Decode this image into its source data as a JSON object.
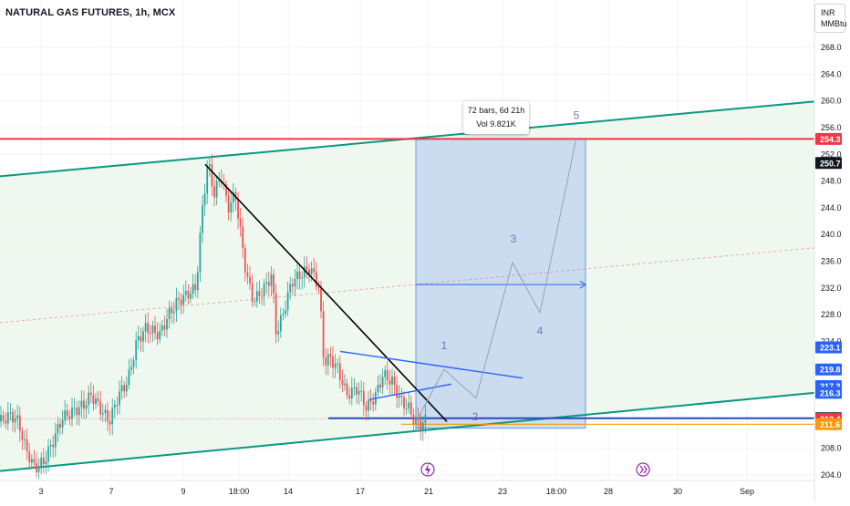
{
  "header": {
    "symbol_title": "NATURAL GAS FUTURES, 1h, MCX",
    "currency": "INR",
    "unit": "MMBtu"
  },
  "measure_tooltip": {
    "line1": "72 bars, 6d 21h",
    "line2": "Vol 9.821K"
  },
  "colors": {
    "background": "#ffffff",
    "up_candle": "#26a69a",
    "down_candle": "#ef5350",
    "channel_line": "#089981",
    "channel_fill": "#e8f5e9",
    "resistance": "#f23645",
    "support": "#1848cc",
    "orange_level": "#ff9800",
    "projection_box": "#bbd0ee",
    "projection_border": "#4a86e8",
    "wave_path": "#9aa0b4",
    "wave_label": "#7e6fbe",
    "trend_line": "#000000"
  },
  "chart_data": {
    "type": "candlestick",
    "symbol": "NATURAL GAS FUTURES",
    "interval": "1h",
    "exchange": "MCX",
    "ylim": [
      203.5,
      271.0
    ],
    "y_ticks": [
      204.0,
      208.0,
      212.0,
      216.0,
      220.0,
      224.0,
      228.0,
      232.0,
      236.0,
      240.0,
      244.0,
      248.0,
      252.0,
      256.0,
      260.0,
      264.0,
      268.0
    ],
    "x_ticks": [
      "3",
      "7",
      "9",
      "18:00",
      "14",
      "17",
      "21",
      "23",
      "18:00",
      "28",
      "30",
      "Sep"
    ],
    "price_labels": [
      {
        "text": "254.3",
        "value": 254.3,
        "color": "#f23645"
      },
      {
        "text": "250.7",
        "value": 250.7,
        "color": "#131722"
      },
      {
        "text": "223.1",
        "value": 223.1,
        "color": "#2962ff"
      },
      {
        "text": "219.8",
        "value": 219.8,
        "color": "#2962ff"
      },
      {
        "text": "217.3",
        "value": 217.3,
        "color": "#2962ff"
      },
      {
        "text": "216.3",
        "value": 216.3,
        "color": "#2962ff"
      },
      {
        "text": "212.5",
        "value": 212.5,
        "color": "#131722"
      },
      {
        "text": "212.4",
        "value": 212.4,
        "color": "#f23645"
      },
      {
        "text": "211.6",
        "value": 211.6,
        "color": "#ff9800"
      }
    ],
    "candle_path": [
      [
        0,
        212.0
      ],
      [
        12,
        213.0
      ],
      [
        20,
        212.0
      ],
      [
        28,
        208.0
      ],
      [
        38,
        205.0
      ],
      [
        48,
        206.0
      ],
      [
        58,
        209.0
      ],
      [
        68,
        212.5
      ],
      [
        80,
        213.5
      ],
      [
        92,
        214.5
      ],
      [
        100,
        216.0
      ],
      [
        112,
        213.5
      ],
      [
        120,
        212.0
      ],
      [
        130,
        216.0
      ],
      [
        140,
        218.0
      ],
      [
        150,
        224.0
      ],
      [
        160,
        226.0
      ],
      [
        175,
        225.0
      ],
      [
        185,
        228.0
      ],
      [
        195,
        230.0
      ],
      [
        205,
        231.0
      ],
      [
        215,
        232.0
      ],
      [
        222,
        244.0
      ],
      [
        228,
        251.0
      ],
      [
        235,
        246.0
      ],
      [
        242,
        249.0
      ],
      [
        250,
        244.0
      ],
      [
        258,
        246.0
      ],
      [
        265,
        239.0
      ],
      [
        270,
        234.0
      ],
      [
        278,
        230.0
      ],
      [
        290,
        232.0
      ],
      [
        298,
        234.0
      ],
      [
        303,
        225.0
      ],
      [
        310,
        228.0
      ],
      [
        320,
        233.0
      ],
      [
        330,
        234.0
      ],
      [
        340,
        235.0
      ],
      [
        350,
        232.0
      ],
      [
        355,
        221.0
      ],
      [
        362,
        221.5
      ],
      [
        370,
        220.0
      ],
      [
        380,
        216.0
      ],
      [
        392,
        217.0
      ],
      [
        402,
        214.0
      ],
      [
        412,
        216.0
      ],
      [
        420,
        219.0
      ],
      [
        430,
        218.0
      ],
      [
        440,
        215.0
      ],
      [
        448,
        214.0
      ],
      [
        455,
        212.0
      ],
      [
        462,
        211.5
      ],
      [
        468,
        212.4
      ]
    ],
    "channel": {
      "upper": [
        [
          0,
          248.7
        ],
        [
          893,
          259.9
        ]
      ],
      "lower": [
        [
          0,
          204.6
        ],
        [
          893,
          216.3
        ]
      ],
      "mid_dashed": [
        [
          0,
          226.8
        ],
        [
          893,
          238.0
        ]
      ]
    },
    "resistance_level": 254.3,
    "support_level": 212.5,
    "orange_level": 211.6,
    "downtrend_line": [
      [
        225,
        250.5
      ],
      [
        490,
        212.0
      ]
    ],
    "triangle_upper": [
      [
        373,
        222.5
      ],
      [
        573,
        218.5
      ]
    ],
    "triangle_lower": [
      [
        405,
        215.3
      ],
      [
        495,
        217.6
      ]
    ],
    "projection_box": {
      "x_start": 456,
      "x_end": 642,
      "top": 254.3,
      "bottom": 211.0
    },
    "target_arrow_level": 232.5,
    "wave_path": [
      [
        456,
        212.0
      ],
      [
        487,
        219.8
      ],
      [
        522,
        215.5
      ],
      [
        562,
        235.8
      ],
      [
        592,
        228.3
      ],
      [
        632,
        254.5
      ]
    ],
    "wave_labels": [
      {
        "label": "1",
        "x": 487,
        "value": 222.8
      },
      {
        "label": "2",
        "x": 521,
        "value": 212.2
      },
      {
        "label": "3",
        "x": 563,
        "value": 238.8
      },
      {
        "label": "4",
        "x": 592,
        "value": 225.0
      },
      {
        "label": "5",
        "x": 632,
        "value": 257.3
      }
    ],
    "event_markers": [
      {
        "x": 469,
        "icon": "lightning-icon"
      },
      {
        "x": 705,
        "icon": "double-chevron-icon"
      }
    ]
  }
}
